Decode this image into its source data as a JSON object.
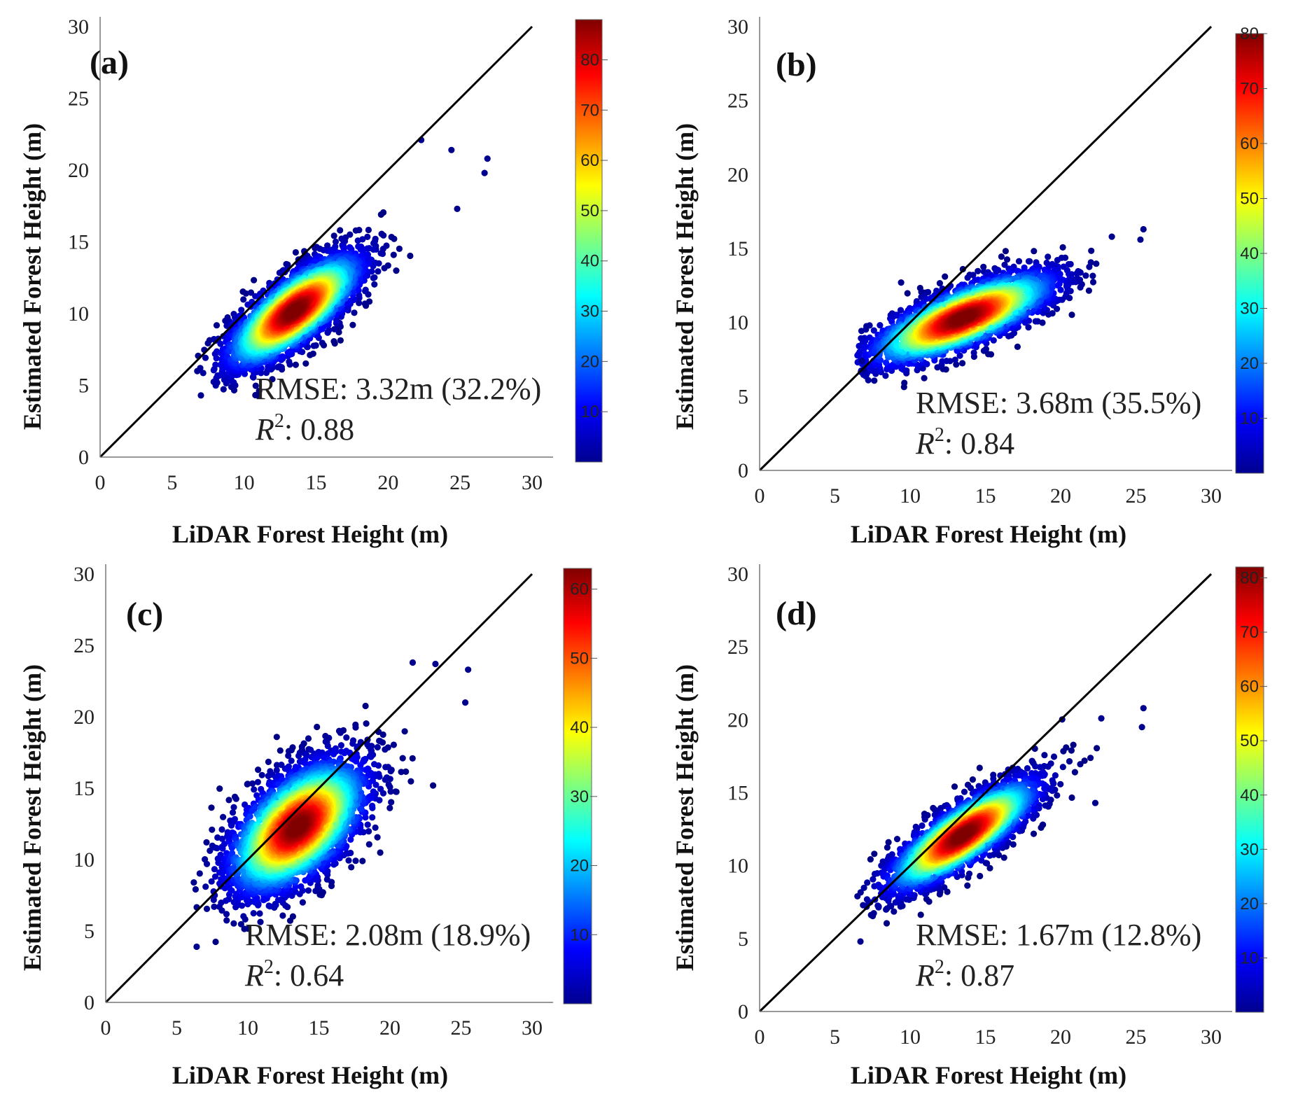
{
  "chart_data": [
    {
      "type": "scatter",
      "panel_label": "(a)",
      "xlabel": "LiDAR Forest Height (m)",
      "ylabel": "Estimated Forest Height (m)",
      "xlim": [
        0,
        30
      ],
      "ylim": [
        0,
        30
      ],
      "xticks": [
        0,
        5,
        10,
        15,
        20,
        25,
        30
      ],
      "yticks": [
        0,
        5,
        10,
        15,
        20,
        25,
        30
      ],
      "one_to_one_line": true,
      "rmse_text": "RMSE: 3.32m (32.2%)",
      "r2_value": ": 0.88",
      "density_max": 88,
      "colorbar_ticks": [
        10,
        20,
        30,
        40,
        50,
        60,
        70,
        80
      ],
      "cloud": {
        "center": [
          13.5,
          10.2
        ],
        "sd_major": 2.9,
        "sd_minor": 1.05,
        "slope": 0.8,
        "x_range": [
          6.5,
          27
        ],
        "y_range": [
          4.3,
          22.5
        ],
        "n": 3000
      },
      "outliers": [
        [
          26.9,
          20.8
        ],
        [
          26.7,
          19.8
        ],
        [
          24.4,
          21.4
        ],
        [
          22.3,
          22.1
        ],
        [
          24.8,
          17.3
        ],
        [
          7.0,
          4.3
        ]
      ],
      "colors": {
        "low": "#00008f",
        "high": "#800000"
      }
    },
    {
      "type": "scatter",
      "panel_label": "(b)",
      "xlabel": "LiDAR Forest Height (m)",
      "ylabel": "Estimated Forest Height (m)",
      "xlim": [
        0,
        30
      ],
      "ylim": [
        0,
        30
      ],
      "xticks": [
        0,
        5,
        10,
        15,
        20,
        25,
        30
      ],
      "yticks": [
        0,
        5,
        10,
        15,
        20,
        25,
        30
      ],
      "one_to_one_line": true,
      "rmse_text": "RMSE: 3.68m (35.5%)",
      "r2_value": ": 0.84",
      "density_max": 80,
      "colorbar_ticks": [
        10,
        20,
        30,
        40,
        50,
        60,
        70,
        80
      ],
      "cloud": {
        "center": [
          13.5,
          10.3
        ],
        "sd_major": 3.3,
        "sd_minor": 0.95,
        "slope": 0.42,
        "x_range": [
          6.5,
          25.7
        ],
        "y_range": [
          4.5,
          16.5
        ],
        "n": 3000
      },
      "outliers": [
        [
          25.5,
          16.3
        ],
        [
          25.3,
          15.6
        ],
        [
          23.4,
          15.8
        ],
        [
          6.8,
          7.4
        ],
        [
          6.9,
          6.8
        ],
        [
          9.4,
          12.7
        ]
      ],
      "colors": {
        "low": "#00008f",
        "high": "#800000"
      }
    },
    {
      "type": "scatter",
      "panel_label": "(c)",
      "xlabel": "LiDAR Forest Height (m)",
      "ylabel": "Estimated Forest Height (m)",
      "xlim": [
        0,
        30
      ],
      "ylim": [
        0,
        30
      ],
      "xticks": [
        0,
        5,
        10,
        15,
        20,
        25,
        30
      ],
      "yticks": [
        0,
        5,
        10,
        15,
        20,
        25,
        30
      ],
      "one_to_one_line": true,
      "rmse_text": "RMSE: 2.08m (18.9%)",
      "r2_value": ": 0.64",
      "density_max": 63,
      "colorbar_ticks": [
        10,
        20,
        30,
        40,
        50,
        60
      ],
      "cloud": {
        "center": [
          13.5,
          12.3
        ],
        "sd_major": 3.0,
        "sd_minor": 1.6,
        "slope": 0.95,
        "x_range": [
          6.3,
          25.7
        ],
        "y_range": [
          3.8,
          24.0
        ],
        "n": 3600
      },
      "outliers": [
        [
          25.5,
          23.3
        ],
        [
          25.3,
          21.0
        ],
        [
          23.2,
          23.7
        ],
        [
          6.4,
          3.9
        ],
        [
          6.2,
          8.4
        ],
        [
          21.6,
          23.8
        ]
      ],
      "colors": {
        "low": "#00008f",
        "high": "#800000"
      }
    },
    {
      "type": "scatter",
      "panel_label": "(d)",
      "xlabel": "LiDAR Forest Height (m)",
      "ylabel": "Estimated Forest Height (m)",
      "xlim": [
        0,
        30
      ],
      "ylim": [
        0,
        30
      ],
      "xticks": [
        0,
        5,
        10,
        15,
        20,
        25,
        30
      ],
      "yticks": [
        0,
        5,
        10,
        15,
        20,
        25,
        30
      ],
      "one_to_one_line": true,
      "rmse_text": "RMSE: 1.67m (12.8%)",
      "r2_value": ": 0.87",
      "density_max": 82,
      "colorbar_ticks": [
        10,
        20,
        30,
        40,
        50,
        60,
        70,
        80
      ],
      "cloud": {
        "center": [
          13.5,
          12.1
        ],
        "sd_major": 3.0,
        "sd_minor": 0.9,
        "slope": 0.72,
        "x_range": [
          6.5,
          25.7
        ],
        "y_range": [
          4.7,
          21.0
        ],
        "n": 3000
      },
      "outliers": [
        [
          25.5,
          20.8
        ],
        [
          25.4,
          19.5
        ],
        [
          22.7,
          20.1
        ],
        [
          6.7,
          4.8
        ],
        [
          22.3,
          14.3
        ],
        [
          6.5,
          7.9
        ]
      ],
      "colors": {
        "low": "#00008f",
        "high": "#800000"
      }
    }
  ]
}
